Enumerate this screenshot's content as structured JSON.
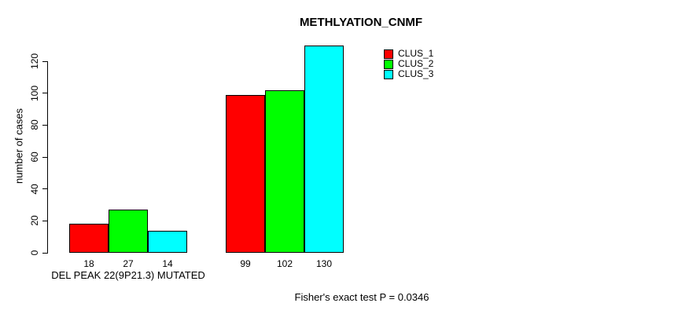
{
  "chart_data": {
    "type": "bar",
    "title": "METHLYATION_CNMF",
    "ylabel": "number of cases",
    "xlabel": "",
    "ylim": [
      0,
      120
    ],
    "yticks": [
      0,
      20,
      40,
      60,
      80,
      100,
      120
    ],
    "grid": false,
    "legend_position": "top-right",
    "categories": [
      "DEL PEAK 22(9P21.3) MUTATED",
      ""
    ],
    "series": [
      {
        "name": "CLUS_1",
        "color": "#FF0000",
        "values": [
          18,
          99
        ]
      },
      {
        "name": "CLUS_2",
        "color": "#00FF00",
        "values": [
          27,
          102
        ]
      },
      {
        "name": "CLUS_3",
        "color": "#00FFFF",
        "values": [
          14,
          130
        ]
      }
    ],
    "annotation": "Fisher's exact test P = 0.0346"
  }
}
